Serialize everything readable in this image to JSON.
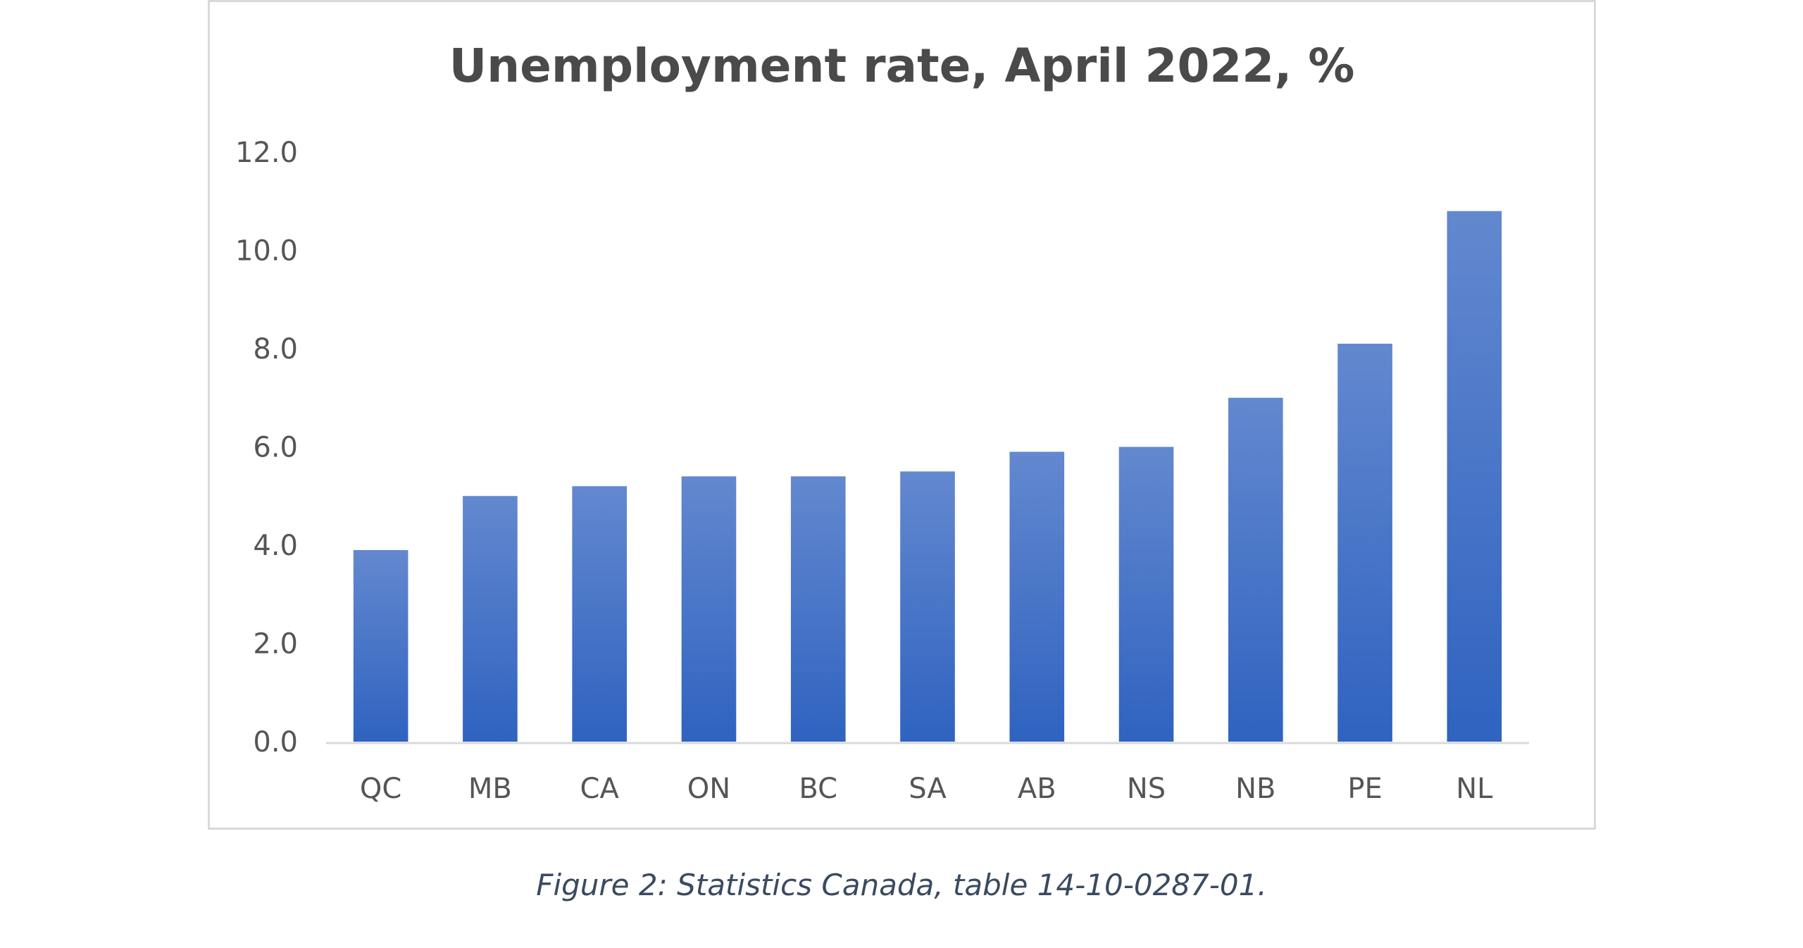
{
  "chart_data": {
    "type": "bar",
    "title": "Unemployment rate, April 2022, %",
    "xlabel": "",
    "ylabel": "",
    "categories": [
      "QC",
      "MB",
      "CA",
      "ON",
      "BC",
      "SA",
      "AB",
      "NS",
      "NB",
      "PE",
      "NL"
    ],
    "values": [
      3.9,
      5.0,
      5.2,
      5.4,
      5.4,
      5.5,
      5.9,
      6.0,
      7.0,
      8.1,
      10.8
    ],
    "ylim": [
      0,
      12
    ],
    "yticks": [
      "0.0",
      "2.0",
      "4.0",
      "6.0",
      "8.0",
      "10.0",
      "12.0"
    ],
    "grid": false,
    "legend": "none",
    "bar_color": "#4472c4"
  },
  "caption": "Figure 2: Statistics Canada, table 14-10-0287-01."
}
